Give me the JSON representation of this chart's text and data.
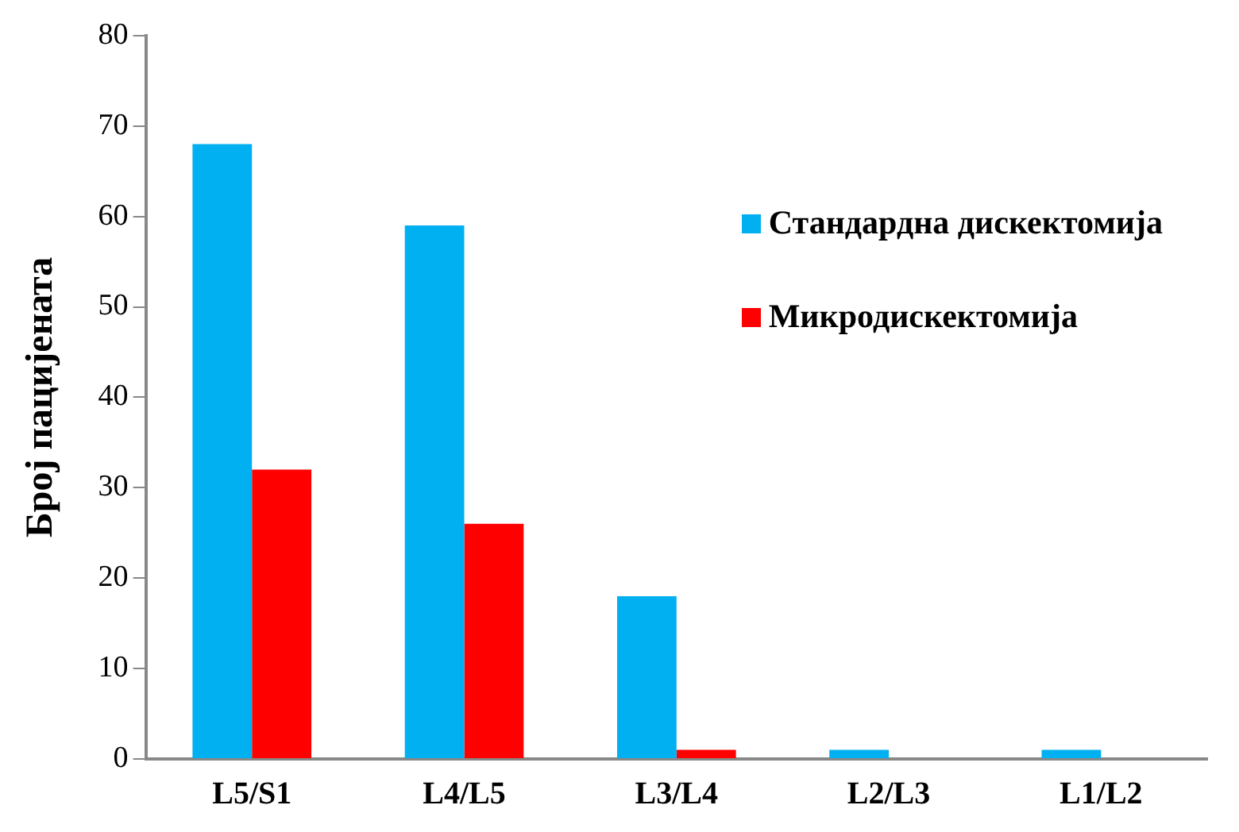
{
  "chart_data": {
    "type": "bar",
    "ylabel": "Број пацијената",
    "categories": [
      "L5/S1",
      "L4/L5",
      "L3/L4",
      "L2/L3",
      "L1/L2"
    ],
    "series": [
      {
        "name": "Стандардна дискектомија",
        "color": "#00b0f0",
        "values": [
          68,
          59,
          18,
          1,
          1
        ]
      },
      {
        "name": "Микродискектомија",
        "color": "#ff0000",
        "values": [
          32,
          26,
          1,
          0,
          0
        ]
      }
    ],
    "ylim": [
      0,
      80
    ],
    "yticks": [
      0,
      10,
      20,
      30,
      40,
      50,
      60,
      70,
      80
    ],
    "grid": false,
    "legend": "top right"
  }
}
